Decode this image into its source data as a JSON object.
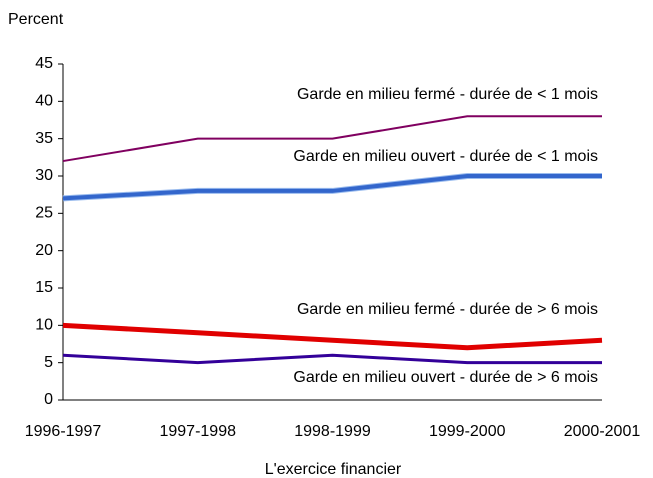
{
  "chart_data": {
    "type": "line",
    "ylabel": "Percent",
    "xlabel": "L'exercice financier",
    "categories": [
      "1996-1997",
      "1997-1998",
      "1998-1999",
      "1999-2000",
      "2000-2001"
    ],
    "series": [
      {
        "name": "Garde en milieu fermé - durée de < 1 mois",
        "color": "#800060",
        "values": [
          32,
          35,
          35,
          38,
          38
        ]
      },
      {
        "name": "Garde en milieu ouvert - durée de < 1 mois",
        "color": "#3366cc",
        "values": [
          27,
          28,
          28,
          30,
          30
        ]
      },
      {
        "name": "Garde en milieu fermé - durée de > 6 mois",
        "color": "#e00000",
        "values": [
          10,
          9,
          8,
          7,
          8
        ]
      },
      {
        "name": "Garde en milieu ouvert - durée de > 6 mois",
        "color": "#330099",
        "values": [
          6,
          5,
          6,
          5,
          5
        ]
      }
    ],
    "ylim": [
      0,
      45
    ],
    "yticks": [
      0,
      5,
      10,
      15,
      20,
      25,
      30,
      35,
      40,
      45
    ],
    "grid": false
  }
}
